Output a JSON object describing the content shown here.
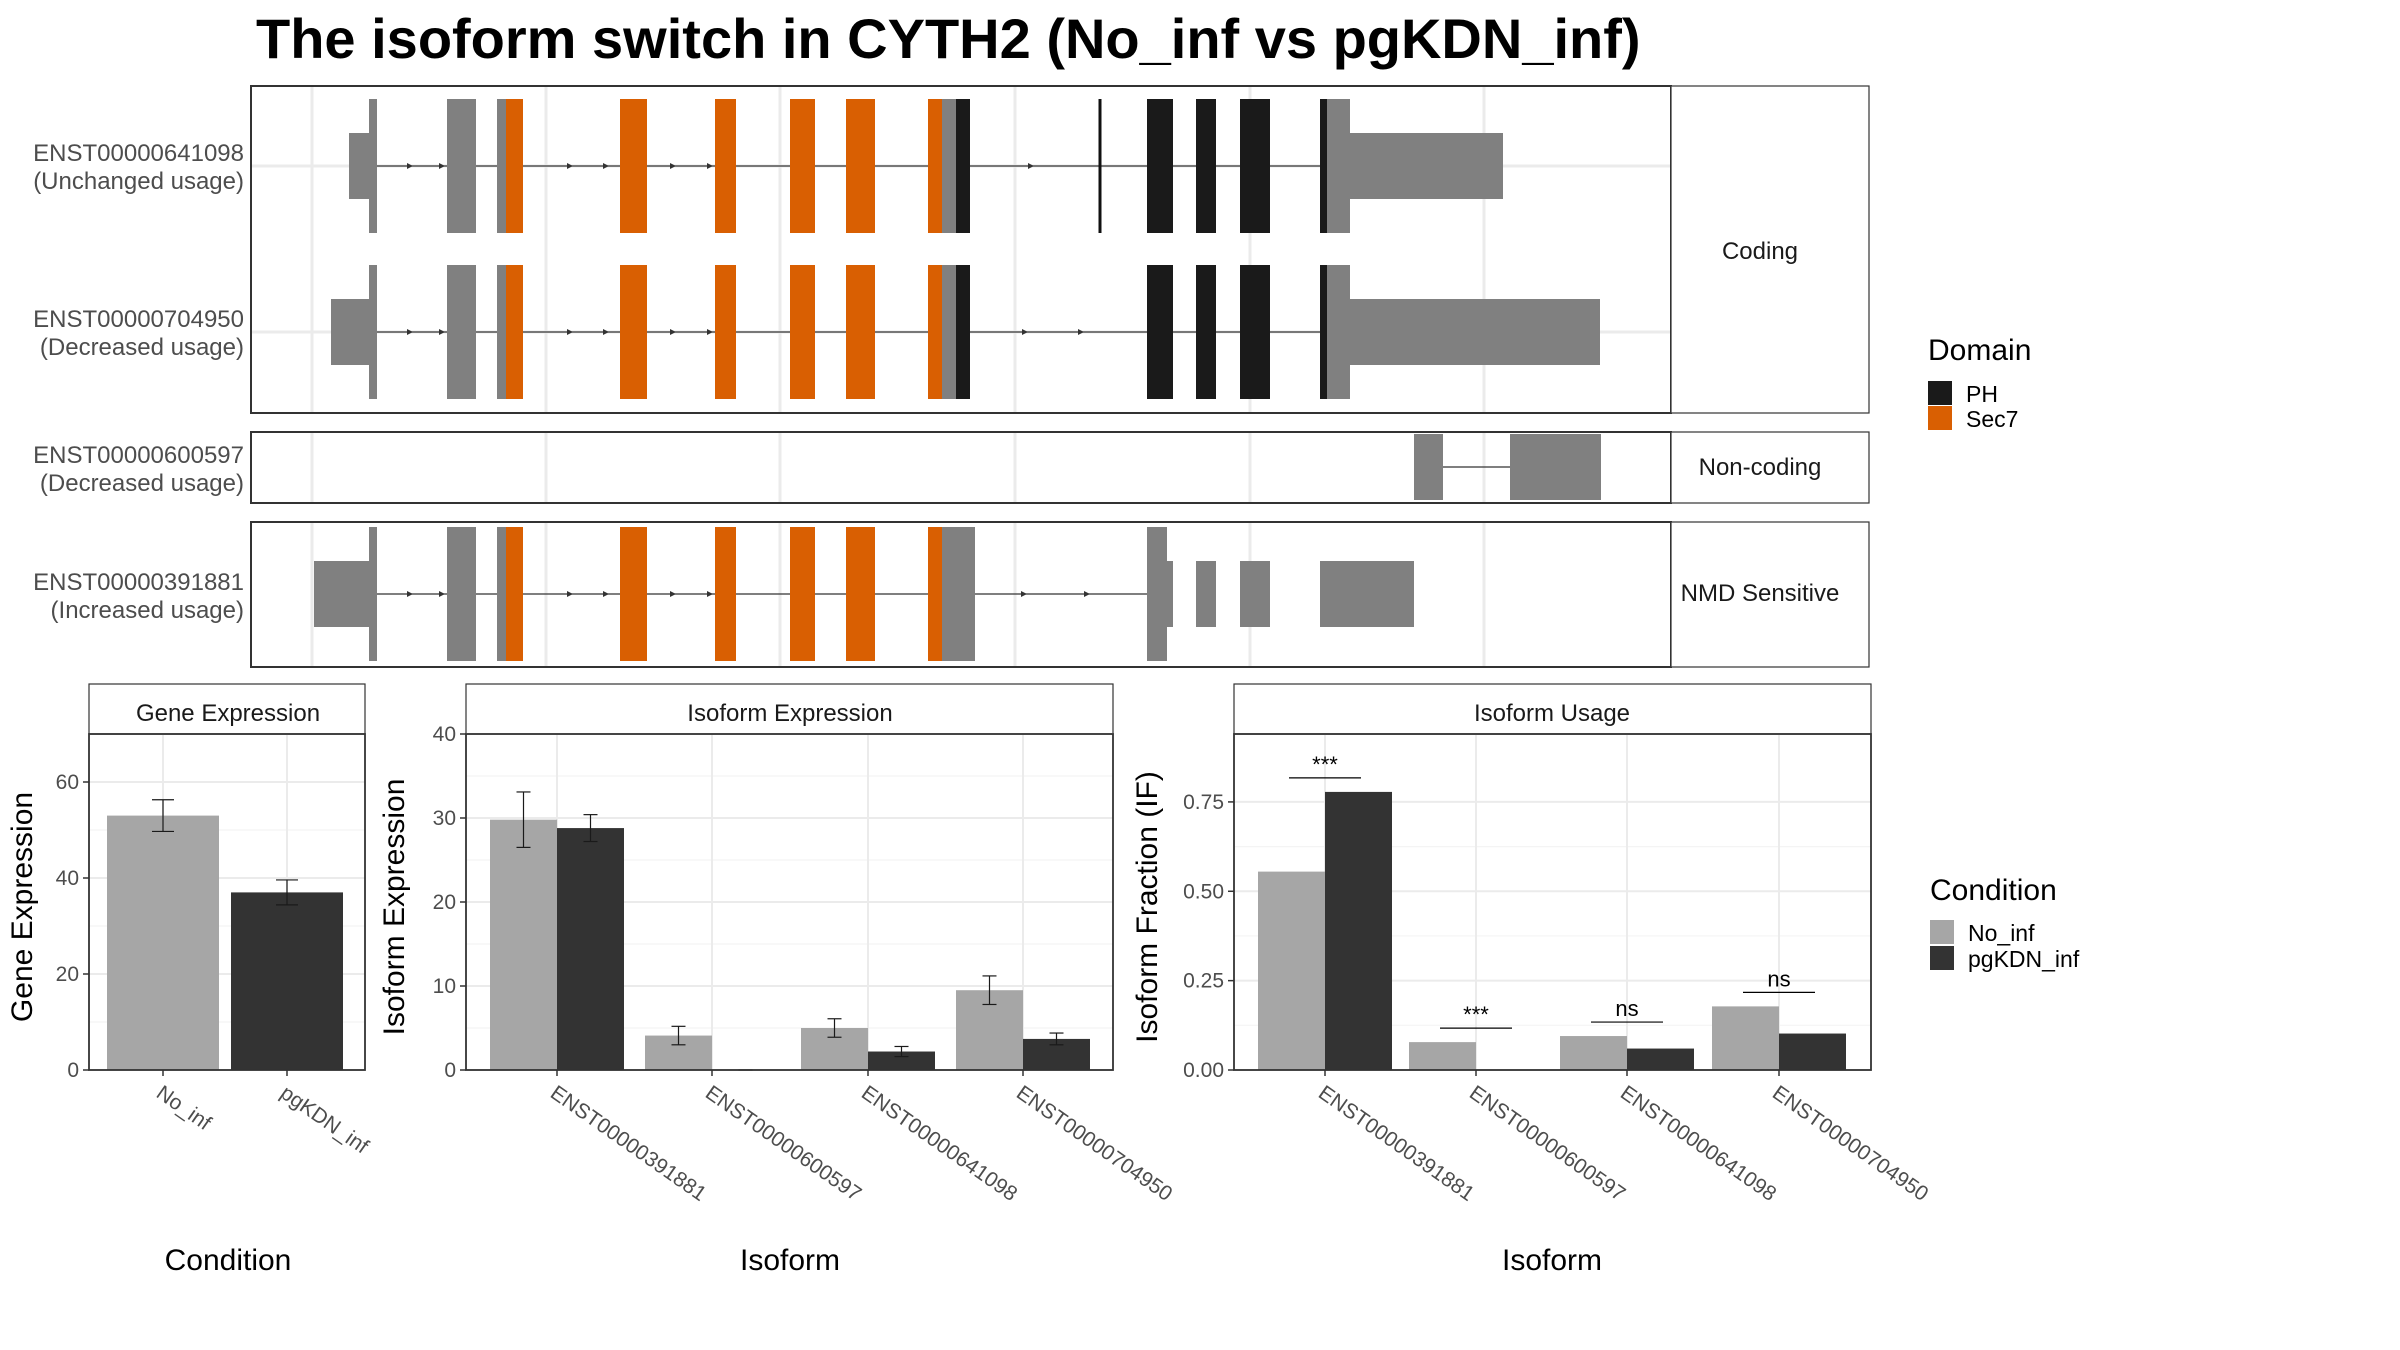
{
  "title": "The isoform switch in CYTH2 (No_inf vs pgKDN_inf)",
  "colors": {
    "exon": "#808080",
    "PH": "#1a1a1a",
    "Sec7": "#d95f02",
    "No_inf": "#a6a6a6",
    "pgKDN_inf": "#333333",
    "grid": "#ebebeb",
    "frame": "#333333"
  },
  "structure": {
    "groups": [
      {
        "label": "Coding",
        "isoforms": [
          {
            "id": "ENST00000641098",
            "usage": "(Unchanged usage)"
          },
          {
            "id": "ENST00000704950",
            "usage": "(Decreased usage)"
          }
        ]
      },
      {
        "label": "Non-coding",
        "isoforms": [
          {
            "id": "ENST00000600597",
            "usage": "(Decreased usage)"
          }
        ]
      },
      {
        "label": "NMD Sensitive",
        "isoforms": [
          {
            "id": "ENST00000391881",
            "usage": "(Increased usage)"
          }
        ]
      }
    ]
  },
  "legend_domain": {
    "title": "Domain",
    "items": [
      "PH",
      "Sec7"
    ]
  },
  "legend_condition": {
    "title": "Condition",
    "items": [
      "No_inf",
      "pgKDN_inf"
    ]
  },
  "chart_data": [
    {
      "type": "bar",
      "title": "Gene Expression",
      "xlabel": "Condition",
      "ylabel": "Gene Expression",
      "ylim": [
        0,
        70
      ],
      "yticks": [
        0,
        20,
        40,
        60
      ],
      "categories": [
        "No_inf",
        "pgKDN_inf"
      ],
      "values": [
        53,
        37
      ],
      "errors": [
        3.3,
        2.6
      ]
    },
    {
      "type": "bar",
      "title": "Isoform Expression",
      "xlabel": "Isoform",
      "ylabel": "Isoform Expression",
      "ylim": [
        0,
        40
      ],
      "yticks": [
        0,
        10,
        20,
        30,
        40
      ],
      "categories": [
        "ENST00000391881",
        "ENST00000600597",
        "ENST00000641098",
        "ENST00000704950"
      ],
      "series": [
        {
          "name": "No_inf",
          "values": [
            29.8,
            4.1,
            5.0,
            9.5
          ],
          "errors": [
            3.3,
            1.1,
            1.1,
            1.7
          ]
        },
        {
          "name": "pgKDN_inf",
          "values": [
            28.8,
            0,
            2.2,
            3.7
          ],
          "errors": [
            1.6,
            0,
            0.6,
            0.7
          ]
        }
      ]
    },
    {
      "type": "bar",
      "title": "Isoform Usage",
      "xlabel": "Isoform",
      "ylabel": "Isoform Fraction (IF)",
      "ylim": [
        0,
        0.94
      ],
      "yticks": [
        0.0,
        0.25,
        0.5,
        0.75
      ],
      "ytick_labels": [
        "0.00",
        "0.25",
        "0.50",
        "0.75"
      ],
      "categories": [
        "ENST00000391881",
        "ENST00000600597",
        "ENST00000641098",
        "ENST00000704950"
      ],
      "series": [
        {
          "name": "No_inf",
          "values": [
            0.555,
            0.078,
            0.095,
            0.178
          ]
        },
        {
          "name": "pgKDN_inf",
          "values": [
            0.778,
            0.0,
            0.06,
            0.102
          ]
        }
      ],
      "significance": [
        "***",
        "***",
        "ns",
        "ns"
      ]
    }
  ]
}
